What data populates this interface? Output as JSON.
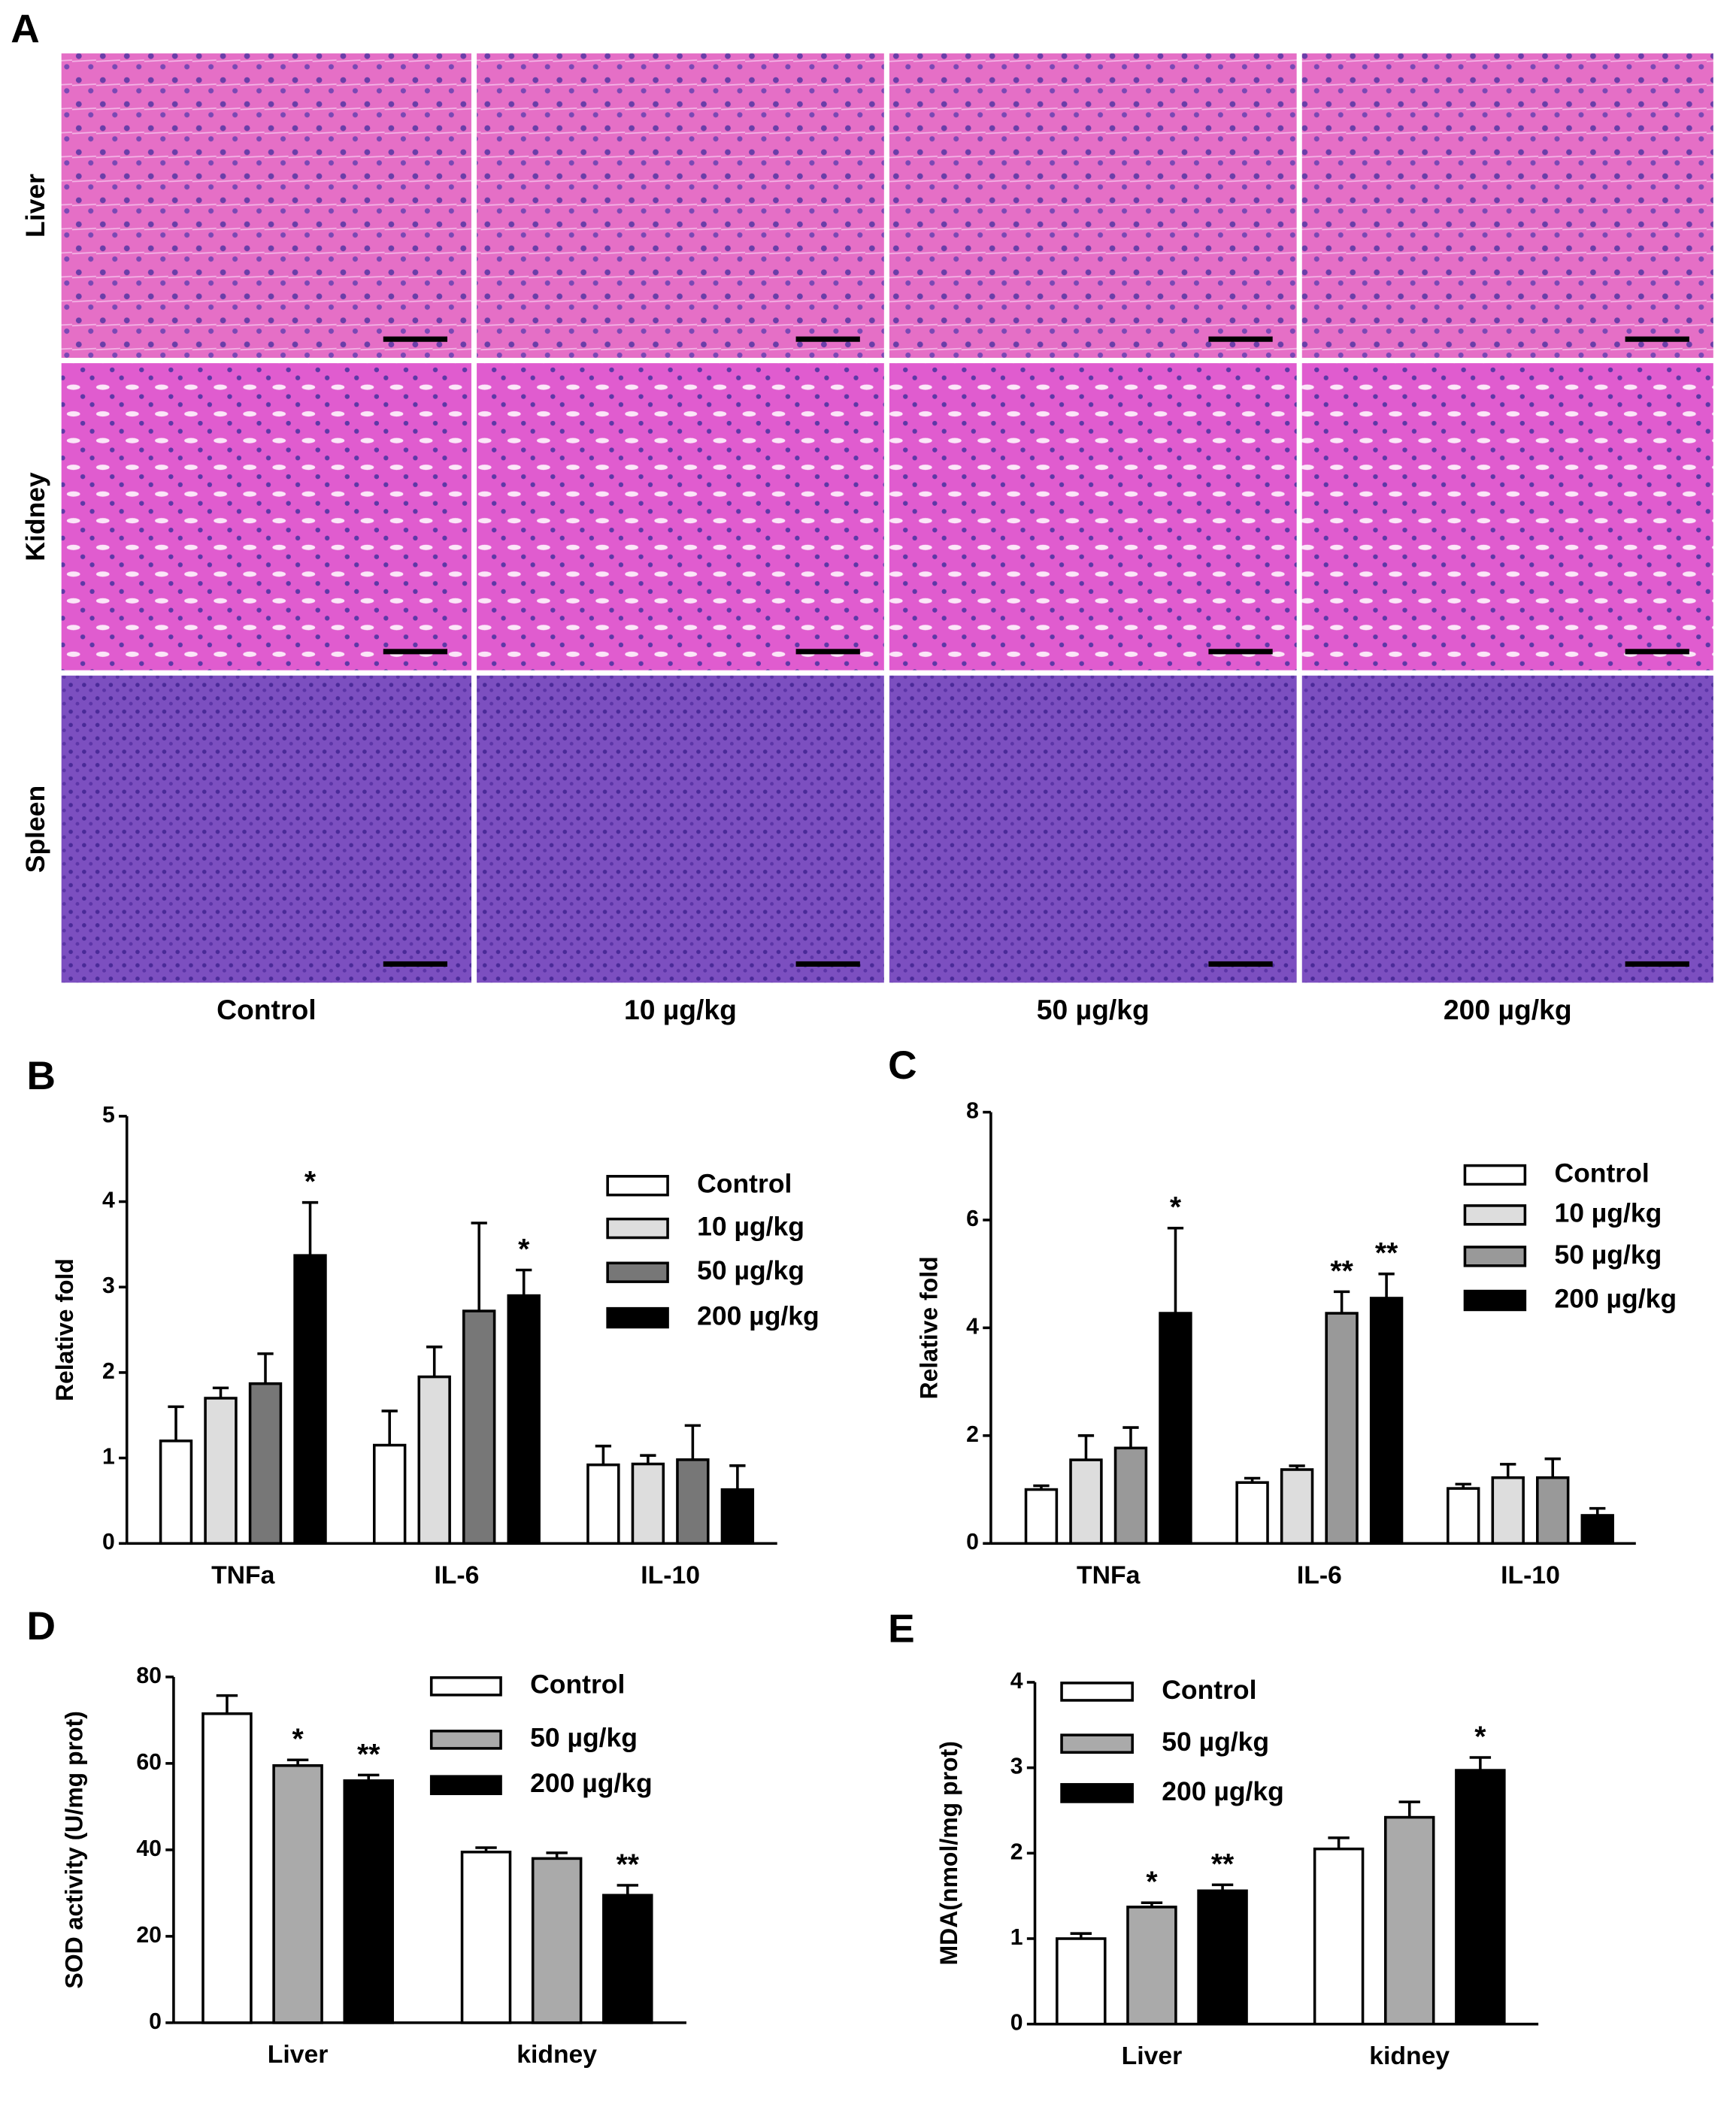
{
  "panel_a": {
    "label": "A",
    "rows": [
      "Liver",
      "Kidney",
      "Spleen"
    ],
    "columns": [
      "Control",
      "10 µg/kg",
      "50 µg/kg",
      "200 µg/kg"
    ]
  },
  "chart_data": [
    {
      "type": "bar",
      "label": "B",
      "ylabel": "Relative fold",
      "categories": [
        "TNFa",
        "IL-6",
        "IL-10"
      ],
      "ylim": [
        0,
        5
      ],
      "yticks": [
        0,
        1,
        2,
        3,
        4,
        5
      ],
      "series": [
        {
          "name": "Control",
          "color": "#ffffff",
          "values": [
            1.2,
            1.15,
            0.92
          ],
          "errors": [
            0.4,
            0.4,
            0.22
          ],
          "significance": [
            null,
            null,
            null
          ]
        },
        {
          "name": "10 µg/kg",
          "color": "#dddddd",
          "values": [
            1.7,
            1.95,
            0.93
          ],
          "errors": [
            0.12,
            0.35,
            0.1
          ],
          "significance": [
            null,
            null,
            null
          ]
        },
        {
          "name": "50 µg/kg",
          "color": "#777777",
          "values": [
            1.87,
            2.72,
            0.98
          ],
          "errors": [
            0.35,
            1.03,
            0.4
          ],
          "significance": [
            null,
            null,
            null
          ]
        },
        {
          "name": "200 µg/kg",
          "color": "#000000",
          "values": [
            3.37,
            2.9,
            0.63
          ],
          "errors": [
            0.62,
            0.3,
            0.28
          ],
          "significance": [
            "*",
            "*",
            null
          ]
        }
      ]
    },
    {
      "type": "bar",
      "label": "C",
      "ylabel": "Relative fold",
      "categories": [
        "TNFa",
        "IL-6",
        "IL-10"
      ],
      "ylim": [
        0,
        8
      ],
      "yticks": [
        0,
        2,
        4,
        6,
        8
      ],
      "series": [
        {
          "name": "Control",
          "color": "#ffffff",
          "values": [
            1.0,
            1.13,
            1.02
          ],
          "errors": [
            0.07,
            0.08,
            0.08
          ],
          "significance": [
            null,
            null,
            null
          ]
        },
        {
          "name": "10 µg/kg",
          "color": "#dddddd",
          "values": [
            1.55,
            1.37,
            1.22
          ],
          "errors": [
            0.45,
            0.07,
            0.25
          ],
          "significance": [
            null,
            null,
            null
          ]
        },
        {
          "name": "50 µg/kg",
          "color": "#999999",
          "values": [
            1.77,
            4.27,
            1.22
          ],
          "errors": [
            0.38,
            0.4,
            0.35
          ],
          "significance": [
            null,
            "**",
            null
          ]
        },
        {
          "name": "200 µg/kg",
          "color": "#000000",
          "values": [
            4.27,
            4.55,
            0.52
          ],
          "errors": [
            1.58,
            0.45,
            0.13
          ],
          "significance": [
            "*",
            "**",
            null
          ]
        }
      ]
    },
    {
      "type": "bar",
      "label": "D",
      "ylabel": "SOD activity (U/mg prot)",
      "categories": [
        "Liver",
        "kidney"
      ],
      "ylim": [
        0,
        80
      ],
      "yticks": [
        0,
        20,
        40,
        60,
        80
      ],
      "series": [
        {
          "name": "Control",
          "color": "#ffffff",
          "values": [
            71.5,
            39.5
          ],
          "errors": [
            4.2,
            1.0
          ],
          "significance": [
            null,
            null
          ]
        },
        {
          "name": "50 µg/kg",
          "color": "#aaaaaa",
          "values": [
            59.5,
            38
          ],
          "errors": [
            1.3,
            1.3
          ],
          "significance": [
            "*",
            null
          ]
        },
        {
          "name": "200 µg/kg",
          "color": "#000000",
          "values": [
            56,
            29.5
          ],
          "errors": [
            1.3,
            2.3
          ],
          "significance": [
            "**",
            "**"
          ]
        }
      ]
    },
    {
      "type": "bar",
      "label": "E",
      "ylabel": "MDA(nmol/mg prot)",
      "categories": [
        "Liver",
        "kidney"
      ],
      "ylim": [
        0,
        4
      ],
      "yticks": [
        0,
        1,
        2,
        3,
        4
      ],
      "series": [
        {
          "name": "Control",
          "color": "#ffffff",
          "values": [
            1.0,
            2.05
          ],
          "errors": [
            0.06,
            0.13
          ],
          "significance": [
            null,
            null
          ]
        },
        {
          "name": "50 µg/kg",
          "color": "#aaaaaa",
          "values": [
            1.37,
            2.42
          ],
          "errors": [
            0.05,
            0.18
          ],
          "significance": [
            "*",
            null
          ]
        },
        {
          "name": "200 µg/kg",
          "color": "#000000",
          "values": [
            1.56,
            2.97
          ],
          "errors": [
            0.07,
            0.15
          ],
          "significance": [
            "**",
            "*"
          ]
        }
      ]
    }
  ]
}
